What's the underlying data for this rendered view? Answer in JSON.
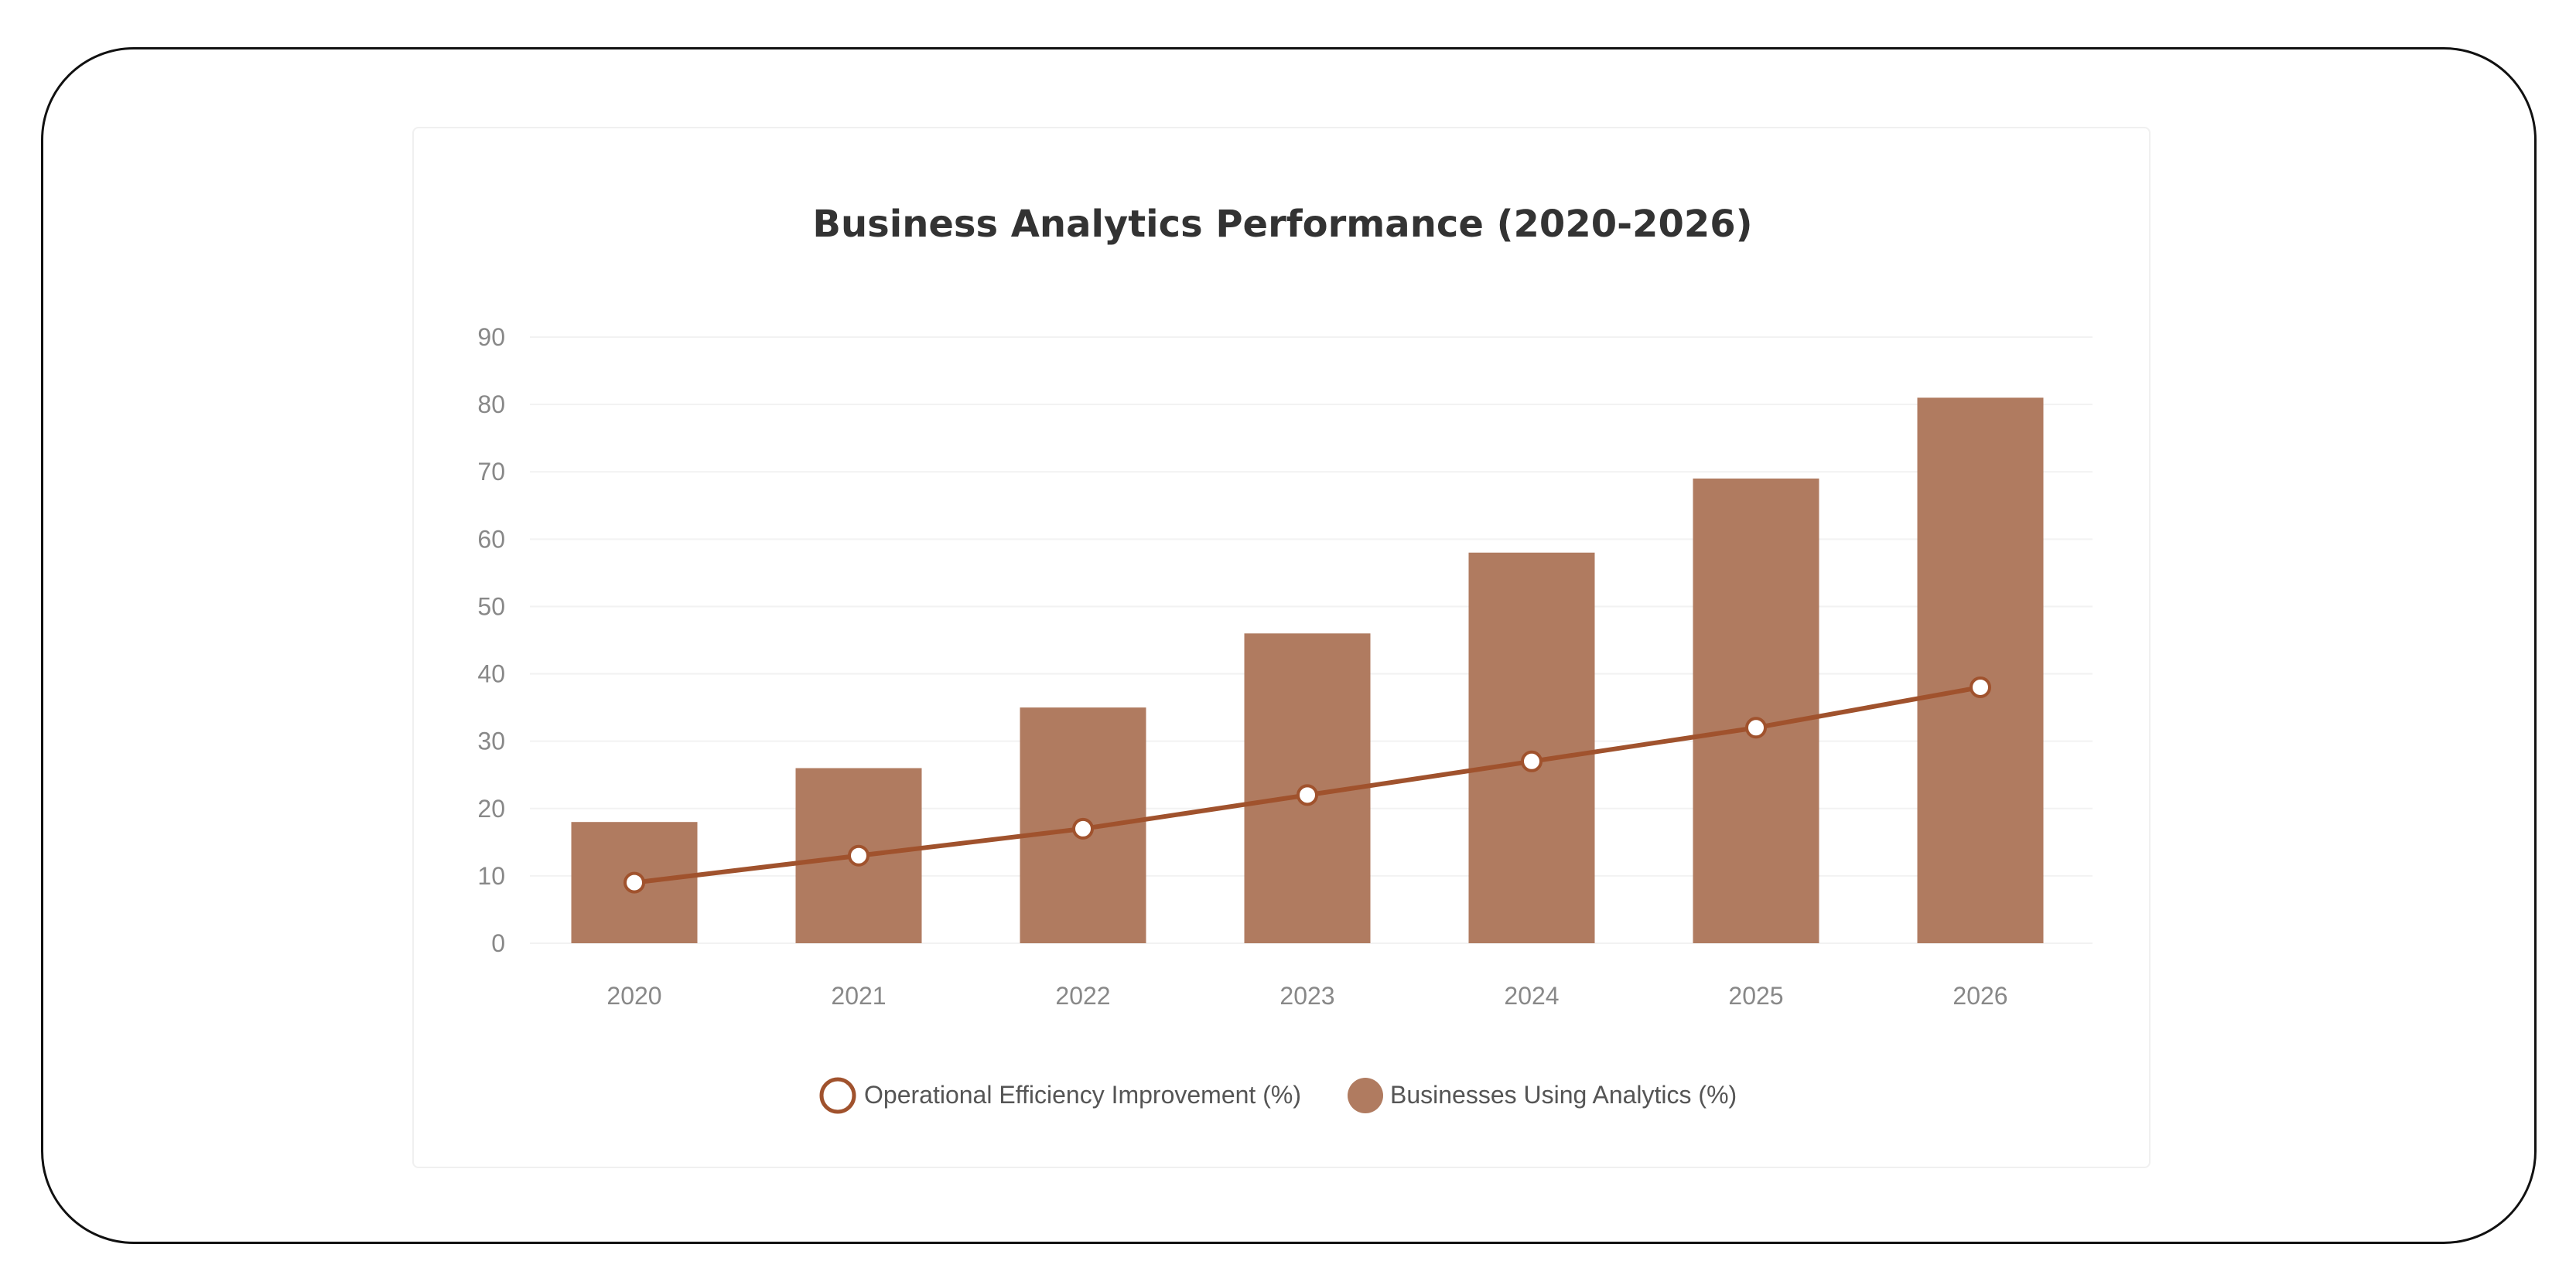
{
  "chart_data": {
    "type": "bar",
    "title": "Business Analytics Performance (2020-2026)",
    "xlabel": "",
    "ylabel": "",
    "categories": [
      "2020",
      "2021",
      "2022",
      "2023",
      "2024",
      "2025",
      "2026"
    ],
    "ylim": [
      0,
      90
    ],
    "yticks": [
      0,
      10,
      20,
      30,
      40,
      50,
      60,
      70,
      80,
      90
    ],
    "grid": true,
    "legend_position": "bottom",
    "series": [
      {
        "name": "Operational Efficiency Improvement (%)",
        "type": "line",
        "values": [
          9,
          13,
          17,
          22,
          27,
          32,
          38
        ],
        "color": "#a0522d"
      },
      {
        "name": "Businesses Using Analytics (%)",
        "type": "bar",
        "values": [
          18,
          26,
          35,
          46,
          58,
          69,
          81
        ],
        "color": "#b07b60"
      }
    ]
  },
  "colors": {
    "frame_border": "#111111",
    "card_border": "#f0f0f0",
    "grid": "#f2f2f2",
    "tick_text": "#888888",
    "title_text": "#333333",
    "legend_text": "#555555",
    "marker_fill": "#ffffff"
  }
}
